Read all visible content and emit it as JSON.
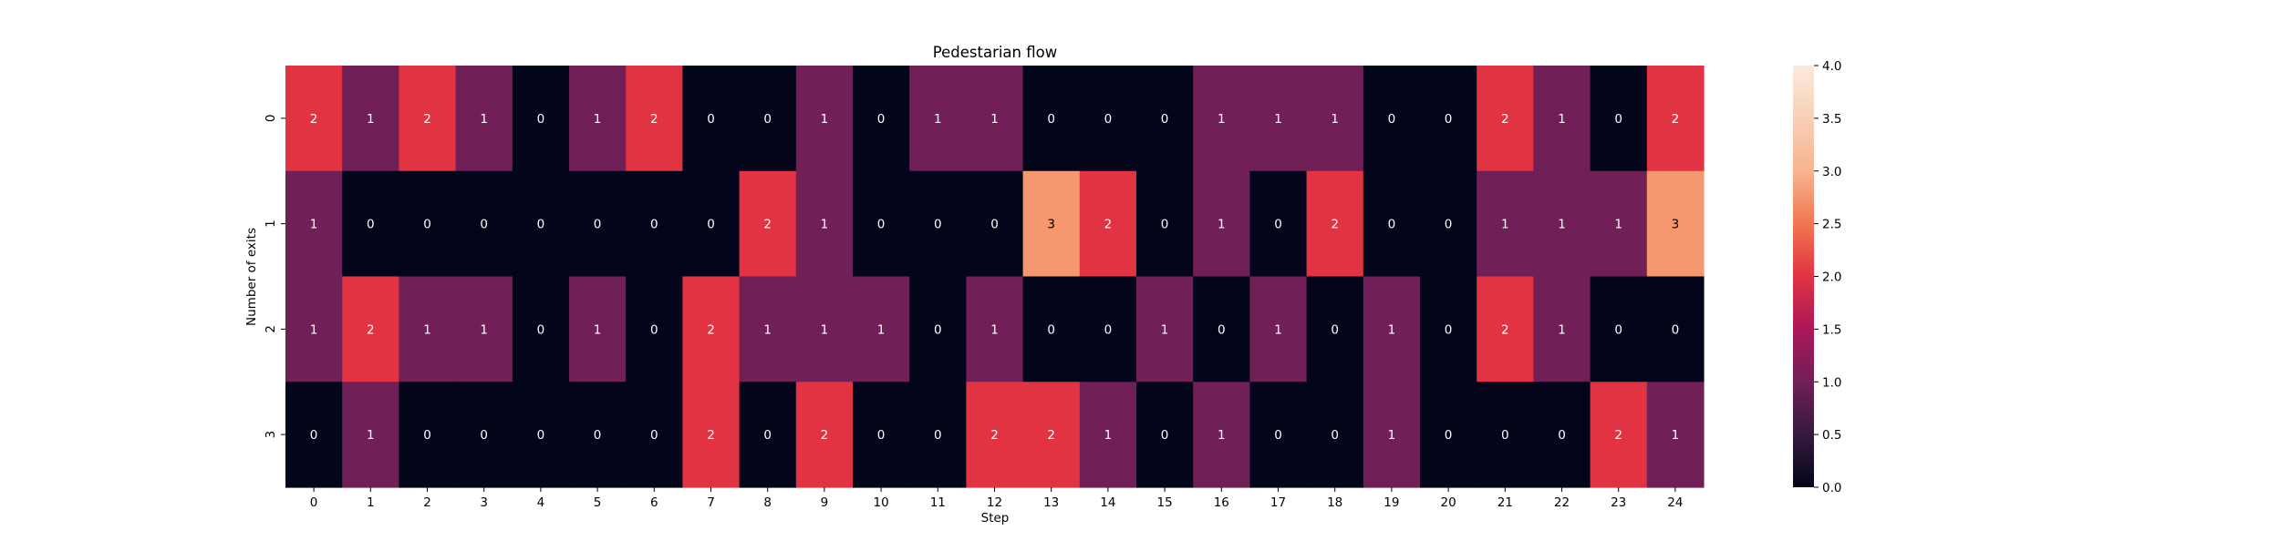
{
  "chart_data": {
    "type": "heatmap",
    "title": "Pedestarian flow",
    "xlabel": "Step",
    "ylabel": "Number of exits",
    "x_ticks": [
      "0",
      "1",
      "2",
      "3",
      "4",
      "5",
      "6",
      "7",
      "8",
      "9",
      "10",
      "11",
      "12",
      "13",
      "14",
      "15",
      "16",
      "17",
      "18",
      "19",
      "20",
      "21",
      "22",
      "23",
      "24"
    ],
    "y_ticks": [
      "0",
      "1",
      "2",
      "3"
    ],
    "values": [
      [
        2,
        1,
        2,
        1,
        0,
        1,
        2,
        0,
        0,
        1,
        0,
        1,
        1,
        0,
        0,
        0,
        1,
        1,
        1,
        0,
        0,
        2,
        1,
        0,
        2
      ],
      [
        1,
        0,
        0,
        0,
        0,
        0,
        0,
        0,
        2,
        1,
        0,
        0,
        0,
        3,
        2,
        0,
        1,
        0,
        2,
        0,
        0,
        1,
        1,
        1,
        3
      ],
      [
        1,
        2,
        1,
        1,
        0,
        1,
        0,
        2,
        1,
        1,
        1,
        0,
        1,
        0,
        0,
        1,
        0,
        1,
        0,
        1,
        0,
        2,
        1,
        0,
        0
      ],
      [
        0,
        1,
        0,
        0,
        0,
        0,
        0,
        2,
        0,
        2,
        0,
        0,
        2,
        2,
        1,
        0,
        1,
        0,
        0,
        1,
        0,
        0,
        0,
        2,
        1
      ]
    ],
    "annotations": true,
    "colormap": "rocket",
    "vmin": 0,
    "vmax": 4,
    "colorbar_ticks": [
      "0.0",
      "0.5",
      "1.0",
      "1.5",
      "2.0",
      "2.5",
      "3.0",
      "3.5",
      "4.0"
    ],
    "colors": {
      "0": "#03051a",
      "1": "#701f57",
      "2": "#e13342",
      "3": "#f6986f",
      "4": "#faebdd"
    }
  }
}
